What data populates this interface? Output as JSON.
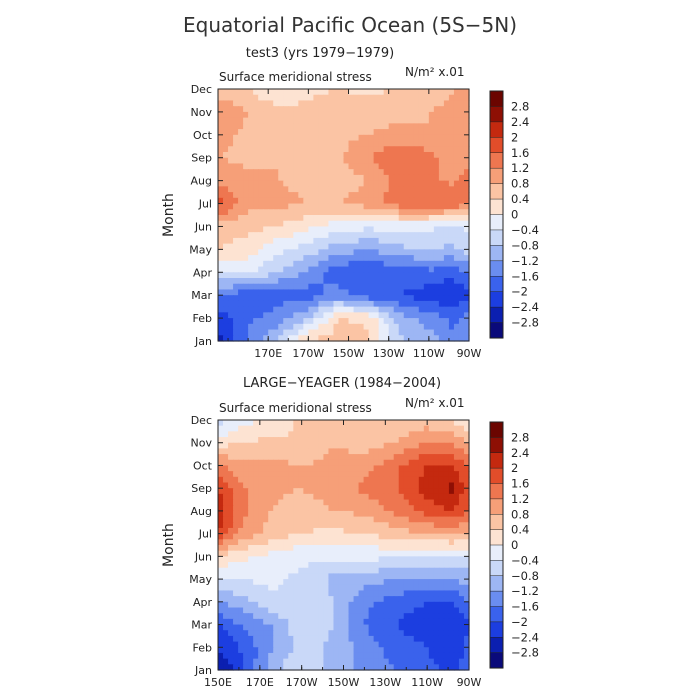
{
  "figure": {
    "title": "Equatorial Pacific Ocean (5S−5N)"
  },
  "chart_data": [
    {
      "type": "heatmap",
      "title": "test3 (yrs 1979−1979)",
      "subtitle": "Surface meridional stress",
      "units_label": "N/m² x.01",
      "ylabel": "Month",
      "xlabel": "",
      "x_ticks": [
        "170E",
        "170W",
        "150W",
        "130W",
        "110W",
        "90W"
      ],
      "x_tick_positions_deg_east": [
        170,
        190,
        210,
        230,
        250,
        270
      ],
      "xlim_deg_east": [
        145,
        270
      ],
      "y_ticks": [
        "Jan",
        "Feb",
        "Mar",
        "Apr",
        "May",
        "Jun",
        "Jul",
        "Aug",
        "Sep",
        "Oct",
        "Nov",
        "Dec"
      ],
      "ylim_months": [
        1,
        12
      ],
      "levels": [
        -2.8,
        -2.4,
        -2,
        -1.6,
        -1.2,
        -0.8,
        -0.4,
        0,
        0.4,
        0.8,
        1.2,
        1.6,
        2,
        2.4,
        2.8
      ],
      "level_labels": [
        "2.8",
        "2.4",
        "2",
        "1.6",
        "1.2",
        "0.8",
        "0.4",
        "0",
        "−0.4",
        "−0.8",
        "−1.2",
        "−1.6",
        "−2",
        "−2.4",
        "−2.8"
      ],
      "colors": [
        "#0a0a7a",
        "#0b1fb0",
        "#1c3ee0",
        "#3a62ec",
        "#6a8df0",
        "#9db6f4",
        "#c9d8f8",
        "#e8eefb",
        "#fde3d2",
        "#fbc4a4",
        "#f69f78",
        "#ee7650",
        "#e24d2a",
        "#c4290f",
        "#8e0f04",
        "#6b0500"
      ],
      "grid_lon_deg_east": [
        147,
        160,
        175,
        190,
        205,
        220,
        235,
        250,
        262,
        270
      ],
      "grid_month": [
        1,
        2,
        3,
        4,
        5,
        6,
        7,
        8,
        9,
        10,
        11,
        12
      ],
      "values": [
        [
          -2.5,
          -1.5,
          -0.8,
          0.5,
          0.6,
          0.5,
          -0.7,
          -1.0,
          -1.5,
          -1.3
        ],
        [
          -2.2,
          -1.7,
          -1.4,
          -0.8,
          0.4,
          0.3,
          -1.0,
          -1.4,
          -1.7,
          -1.5
        ],
        [
          -1.6,
          -1.9,
          -1.8,
          -1.8,
          -1.4,
          -1.9,
          -2.0,
          -2.2,
          -2.5,
          -2.0
        ],
        [
          -0.4,
          -0.3,
          -0.8,
          -1.3,
          -1.9,
          -2.0,
          -1.9,
          -1.7,
          -1.8,
          -1.5
        ],
        [
          0.4,
          0.2,
          -0.3,
          -0.6,
          -1.0,
          -1.2,
          -0.9,
          -0.8,
          -0.9,
          -0.6
        ],
        [
          0.6,
          0.5,
          0.4,
          0.1,
          -0.2,
          -0.3,
          -0.2,
          -0.3,
          -0.5,
          -0.3
        ],
        [
          1.7,
          0.9,
          0.9,
          0.8,
          0.8,
          1.0,
          1.4,
          1.6,
          1.5,
          1.3
        ],
        [
          1.0,
          0.9,
          0.8,
          0.7,
          0.6,
          0.8,
          1.4,
          1.3,
          1.1,
          1.6
        ],
        [
          0.8,
          0.7,
          0.8,
          0.7,
          0.7,
          1.2,
          1.6,
          1.4,
          0.9,
          0.8
        ],
        [
          0.9,
          0.7,
          0.6,
          0.6,
          0.7,
          0.8,
          0.9,
          0.8,
          1.0,
          0.8
        ],
        [
          1.1,
          0.8,
          0.6,
          0.5,
          0.6,
          0.7,
          0.7,
          0.8,
          1.0,
          1.0
        ],
        [
          0.6,
          0.4,
          -0.1,
          0.3,
          0.4,
          0.3,
          0.4,
          0.5,
          0.7,
          1.2
        ]
      ]
    },
    {
      "type": "heatmap",
      "title": "LARGE−YEAGER (1984−2004)",
      "subtitle": "Surface meridional stress",
      "units_label": "N/m² x.01",
      "ylabel": "Month",
      "xlabel": "",
      "x_ticks": [
        "150E",
        "170E",
        "170W",
        "150W",
        "130W",
        "110W",
        "90W"
      ],
      "x_tick_positions_deg_east": [
        150,
        170,
        190,
        210,
        230,
        250,
        270
      ],
      "xlim_deg_east": [
        150,
        270
      ],
      "y_ticks": [
        "Jan",
        "Feb",
        "Mar",
        "Apr",
        "May",
        "Jun",
        "Jul",
        "Aug",
        "Sep",
        "Oct",
        "Nov",
        "Dec"
      ],
      "ylim_months": [
        1,
        12
      ],
      "levels": [
        -2.8,
        -2.4,
        -2,
        -1.6,
        -1.2,
        -0.8,
        -0.4,
        0,
        0.4,
        0.8,
        1.2,
        1.6,
        2,
        2.4,
        2.8
      ],
      "level_labels": [
        "2.8",
        "2.4",
        "2",
        "1.6",
        "1.2",
        "0.8",
        "0.4",
        "0",
        "−0.4",
        "−0.8",
        "−1.2",
        "−1.6",
        "−2",
        "−2.4",
        "−2.8"
      ],
      "colors": [
        "#0a0a7a",
        "#0b1fb0",
        "#1c3ee0",
        "#3a62ec",
        "#6a8df0",
        "#9db6f4",
        "#c9d8f8",
        "#e8eefb",
        "#fde3d2",
        "#fbc4a4",
        "#f69f78",
        "#ee7650",
        "#e24d2a",
        "#c4290f",
        "#8e0f04",
        "#6b0500"
      ],
      "grid_lon_deg_east": [
        150,
        160,
        175,
        190,
        205,
        220,
        235,
        250,
        262,
        270
      ],
      "grid_month": [
        1,
        2,
        3,
        4,
        5,
        6,
        7,
        8,
        9,
        10,
        11,
        12
      ],
      "values": [
        [
          -2.8,
          -2.2,
          -1.0,
          -0.4,
          -1.0,
          -1.3,
          -1.6,
          -1.9,
          -2.1,
          -1.8
        ],
        [
          -2.4,
          -2.0,
          -1.3,
          -0.6,
          -0.9,
          -1.4,
          -1.8,
          -2.0,
          -2.3,
          -1.9
        ],
        [
          -2.0,
          -1.6,
          -1.2,
          -0.5,
          -0.8,
          -1.6,
          -2.0,
          -2.3,
          -2.4,
          -2.0
        ],
        [
          -1.2,
          -1.0,
          -0.5,
          -0.4,
          -0.8,
          -1.5,
          -1.8,
          -2.0,
          -2.0,
          -1.6
        ],
        [
          -0.4,
          -0.4,
          -0.3,
          -0.5,
          -0.9,
          -1.0,
          -1.2,
          -1.2,
          -1.2,
          -1.0
        ],
        [
          0.4,
          0.1,
          -0.1,
          -0.3,
          -0.3,
          -0.3,
          -0.3,
          -0.4,
          -0.4,
          -0.5
        ],
        [
          2.0,
          1.2,
          0.6,
          0.4,
          0.3,
          0.4,
          0.6,
          0.8,
          0.9,
          0.8
        ],
        [
          2.3,
          1.4,
          0.8,
          0.6,
          0.8,
          0.9,
          1.3,
          1.8,
          2.0,
          1.6
        ],
        [
          2.0,
          1.3,
          0.9,
          0.8,
          1.0,
          1.3,
          1.6,
          2.2,
          2.5,
          1.8
        ],
        [
          1.2,
          1.0,
          0.9,
          0.8,
          0.9,
          1.0,
          1.5,
          2.0,
          2.0,
          1.5
        ],
        [
          0.2,
          0.4,
          0.5,
          0.4,
          0.8,
          0.6,
          0.8,
          1.2,
          1.1,
          0.8
        ],
        [
          -0.6,
          -0.2,
          0.1,
          0.5,
          0.6,
          0.4,
          0.5,
          0.6,
          0.4,
          0.0
        ]
      ]
    }
  ]
}
